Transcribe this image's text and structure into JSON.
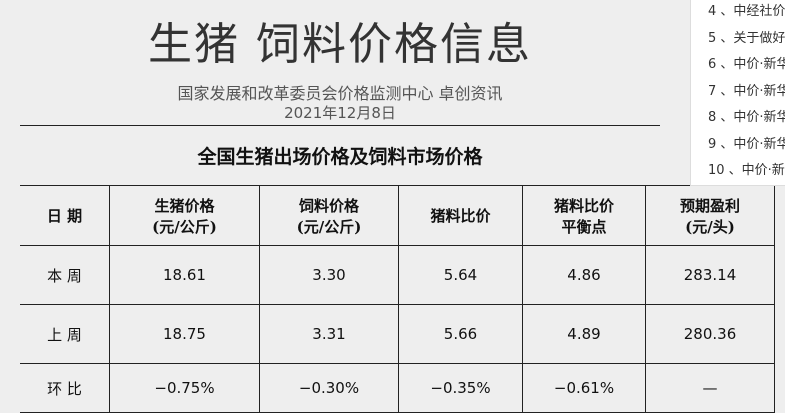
{
  "header": {
    "title": "生猪  饲料价格信息",
    "source": "国家发展和改革委员会价格监测中心     卓创资讯",
    "date": "2021年12月8日"
  },
  "table": {
    "title": "全国生猪出场价格及饲料市场价格",
    "columns": [
      [
        "日  期",
        ""
      ],
      [
        "生猪价格",
        "(元/公斤)"
      ],
      [
        "饲料价格",
        "(元/公斤)"
      ],
      [
        "猪料比价",
        ""
      ],
      [
        "猪料比价",
        "平衡点"
      ],
      [
        "预期盈利",
        "(元/头)"
      ]
    ],
    "rows": [
      [
        "本 周",
        "18.61",
        "3.30",
        "5.64",
        "4.86",
        "283.14"
      ],
      [
        "上 周",
        "18.75",
        "3.31",
        "5.66",
        "4.89",
        "280.36"
      ],
      [
        "环 比",
        "−0.75%",
        "−0.30%",
        "−0.35%",
        "−0.61%",
        "—"
      ]
    ]
  },
  "related": [
    "4 、中经社价",
    "5 、关于做好",
    "6 、中价·新华",
    "7 、中价·新华",
    "8 、中价·新华",
    "9 、中价·新华",
    "10 、中价·新"
  ]
}
